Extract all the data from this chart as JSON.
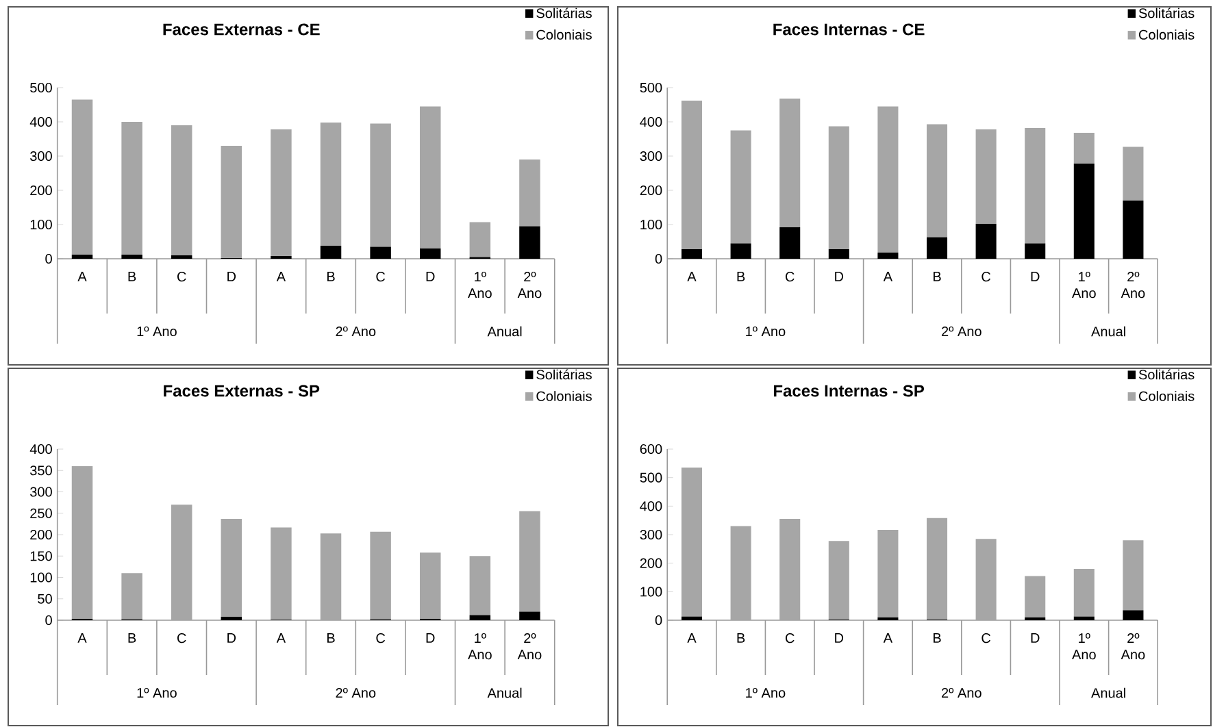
{
  "chart_data": [
    {
      "type": "bar",
      "title": "Faces Externas - CE",
      "stacked": true,
      "legend": "top right",
      "categories": [
        "A",
        "B",
        "C",
        "D",
        "A",
        "B",
        "C",
        "D",
        "1º Ano",
        "2º Ano"
      ],
      "series": [
        {
          "name": "Solitárias",
          "color": "#000000",
          "values": [
            12,
            12,
            10,
            2,
            8,
            38,
            35,
            30,
            5,
            95
          ]
        },
        {
          "name": "Coloniais",
          "color": "#a6a6a6",
          "values": [
            453,
            388,
            380,
            328,
            370,
            360,
            360,
            415,
            102,
            195
          ]
        }
      ],
      "ylim": [
        0,
        500
      ],
      "yticks": [
        0,
        100,
        200,
        300,
        400,
        500
      ],
      "annotations": [
        "1º Ano",
        "2º Ano",
        "Anual"
      ]
    },
    {
      "type": "bar",
      "title": "Faces Internas - CE",
      "stacked": true,
      "legend": "top right",
      "categories": [
        "A",
        "B",
        "C",
        "D",
        "A",
        "B",
        "C",
        "D",
        "1º Ano",
        "2º Ano"
      ],
      "series": [
        {
          "name": "Solitárias",
          "color": "#000000",
          "values": [
            28,
            45,
            92,
            28,
            18,
            63,
            102,
            45,
            278,
            170
          ]
        },
        {
          "name": "Coloniais",
          "color": "#a6a6a6",
          "values": [
            434,
            330,
            376,
            359,
            427,
            330,
            276,
            337,
            90,
            157
          ]
        }
      ],
      "ylim": [
        0,
        500
      ],
      "yticks": [
        0,
        100,
        200,
        300,
        400,
        500
      ],
      "annotations": [
        "1º Ano",
        "2º Ano",
        "Anual"
      ]
    },
    {
      "type": "bar",
      "title": "Faces Externas - SP",
      "stacked": true,
      "legend": "top right",
      "categories": [
        "A",
        "B",
        "C",
        "D",
        "A",
        "B",
        "C",
        "D",
        "1º Ano",
        "2º Ano"
      ],
      "series": [
        {
          "name": "Solitárias",
          "color": "#000000",
          "values": [
            3,
            2,
            0,
            8,
            1,
            0,
            2,
            3,
            12,
            20
          ]
        },
        {
          "name": "Coloniais",
          "color": "#a6a6a6",
          "values": [
            357,
            108,
            270,
            229,
            216,
            203,
            205,
            155,
            138,
            235
          ]
        }
      ],
      "ylim": [
        0,
        400
      ],
      "yticks": [
        0,
        50,
        100,
        150,
        200,
        250,
        300,
        350,
        400
      ],
      "annotations": [
        "1º Ano",
        "2º Ano",
        "Anual"
      ]
    },
    {
      "type": "bar",
      "title": "Faces Internas - SP",
      "stacked": true,
      "legend": "top right",
      "categories": [
        "A",
        "B",
        "C",
        "D",
        "A",
        "B",
        "C",
        "D",
        "1º Ano",
        "2º Ano"
      ],
      "series": [
        {
          "name": "Solitárias",
          "color": "#000000",
          "values": [
            13,
            0,
            0,
            2,
            10,
            2,
            0,
            10,
            13,
            35
          ]
        },
        {
          "name": "Coloniais",
          "color": "#a6a6a6",
          "values": [
            522,
            330,
            355,
            276,
            307,
            356,
            285,
            145,
            167,
            245
          ]
        }
      ],
      "ylim": [
        0,
        600
      ],
      "yticks": [
        0,
        100,
        200,
        300,
        400,
        500,
        600
      ],
      "annotations": [
        "1º Ano",
        "2º Ano",
        "Anual"
      ]
    }
  ]
}
